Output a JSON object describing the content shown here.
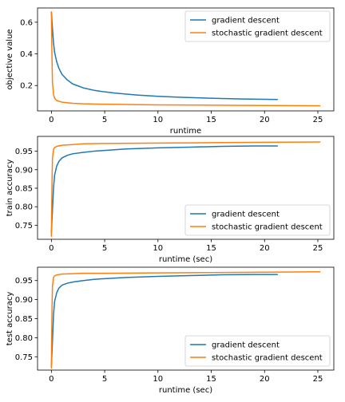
{
  "chart_data": [
    {
      "type": "line",
      "xlabel": "runtime",
      "ylabel": "objective value",
      "xlim": [
        -1.3,
        26.5
      ],
      "ylim": [
        0.04,
        0.69
      ],
      "xticks": [
        0,
        5,
        10,
        15,
        20,
        25
      ],
      "yticks": [
        0.2,
        0.4,
        0.6
      ],
      "ytick_labels": [
        "0.2",
        "0.4",
        "0.6"
      ],
      "legend_position": "top-right",
      "grid": false,
      "series": [
        {
          "name": "gradient descent",
          "color": "#1f77b4",
          "x": [
            0,
            0.1,
            0.2,
            0.3,
            0.5,
            0.7,
            1.0,
            1.5,
            2.0,
            3.0,
            4.0,
            5.0,
            6.0,
            8.0,
            10.0,
            12.0,
            14.0,
            16.0,
            18.0,
            20.0,
            21.2
          ],
          "y": [
            0.665,
            0.56,
            0.47,
            0.41,
            0.35,
            0.31,
            0.27,
            0.235,
            0.21,
            0.185,
            0.17,
            0.16,
            0.152,
            0.14,
            0.132,
            0.126,
            0.122,
            0.118,
            0.115,
            0.113,
            0.112
          ]
        },
        {
          "name": "stochastic gradient descent",
          "color": "#ff7f0e",
          "x": [
            0,
            0.05,
            0.1,
            0.2,
            0.3,
            0.5,
            1.0,
            2.0,
            3.0,
            5.0,
            7.0,
            10.0,
            15.0,
            20.0,
            25.2
          ],
          "y": [
            0.665,
            0.4,
            0.22,
            0.145,
            0.12,
            0.105,
            0.095,
            0.088,
            0.085,
            0.082,
            0.08,
            0.078,
            0.076,
            0.074,
            0.072
          ]
        }
      ]
    },
    {
      "type": "line",
      "xlabel": "runtime (sec)",
      "ylabel": "train accuracy",
      "xlim": [
        -1.3,
        26.5
      ],
      "ylim": [
        0.712,
        0.99
      ],
      "xticks": [
        0,
        5,
        10,
        15,
        20,
        25
      ],
      "yticks": [
        0.75,
        0.8,
        0.85,
        0.9,
        0.95
      ],
      "ytick_labels": [
        "0.75",
        "0.80",
        "0.85",
        "0.90",
        "0.95"
      ],
      "legend_position": "lower-right",
      "grid": false,
      "series": [
        {
          "name": "gradient descent",
          "color": "#1f77b4",
          "x": [
            0,
            0.1,
            0.2,
            0.3,
            0.5,
            0.7,
            1.0,
            1.5,
            2.0,
            3.0,
            4.0,
            5.0,
            7.0,
            10.0,
            13.0,
            16.0,
            19.0,
            21.2
          ],
          "y": [
            0.73,
            0.79,
            0.85,
            0.885,
            0.91,
            0.922,
            0.932,
            0.939,
            0.943,
            0.947,
            0.95,
            0.952,
            0.956,
            0.959,
            0.961,
            0.963,
            0.964,
            0.964
          ]
        },
        {
          "name": "stochastic gradient descent",
          "color": "#ff7f0e",
          "x": [
            0,
            0.05,
            0.1,
            0.2,
            0.3,
            0.5,
            1.0,
            2.0,
            3.0,
            5.0,
            10.0,
            15.0,
            20.0,
            25.2
          ],
          "y": [
            0.72,
            0.85,
            0.93,
            0.955,
            0.96,
            0.963,
            0.966,
            0.968,
            0.97,
            0.971,
            0.972,
            0.973,
            0.974,
            0.975
          ]
        }
      ]
    },
    {
      "type": "line",
      "xlabel": "runtime (sec)",
      "ylabel": "test accuracy",
      "xlim": [
        -1.3,
        26.5
      ],
      "ylim": [
        0.715,
        0.985
      ],
      "xticks": [
        0,
        5,
        10,
        15,
        20,
        25
      ],
      "yticks": [
        0.75,
        0.8,
        0.85,
        0.9,
        0.95
      ],
      "ytick_labels": [
        "0.75",
        "0.80",
        "0.85",
        "0.90",
        "0.95"
      ],
      "legend_position": "lower-right",
      "grid": false,
      "series": [
        {
          "name": "gradient descent",
          "color": "#1f77b4",
          "x": [
            0,
            0.1,
            0.2,
            0.3,
            0.5,
            0.7,
            1.0,
            1.5,
            2.0,
            3.0,
            4.0,
            5.0,
            7.0,
            10.0,
            13.0,
            16.0,
            19.0,
            21.2
          ],
          "y": [
            0.725,
            0.79,
            0.86,
            0.895,
            0.918,
            0.93,
            0.938,
            0.943,
            0.946,
            0.95,
            0.953,
            0.955,
            0.958,
            0.961,
            0.963,
            0.965,
            0.966,
            0.966
          ]
        },
        {
          "name": "stochastic gradient descent",
          "color": "#ff7f0e",
          "x": [
            0,
            0.05,
            0.1,
            0.2,
            0.3,
            0.5,
            1.0,
            2.0,
            3.0,
            5.0,
            10.0,
            15.0,
            20.0,
            25.2
          ],
          "y": [
            0.72,
            0.86,
            0.935,
            0.958,
            0.962,
            0.965,
            0.967,
            0.968,
            0.969,
            0.969,
            0.97,
            0.971,
            0.972,
            0.973
          ]
        }
      ]
    }
  ]
}
